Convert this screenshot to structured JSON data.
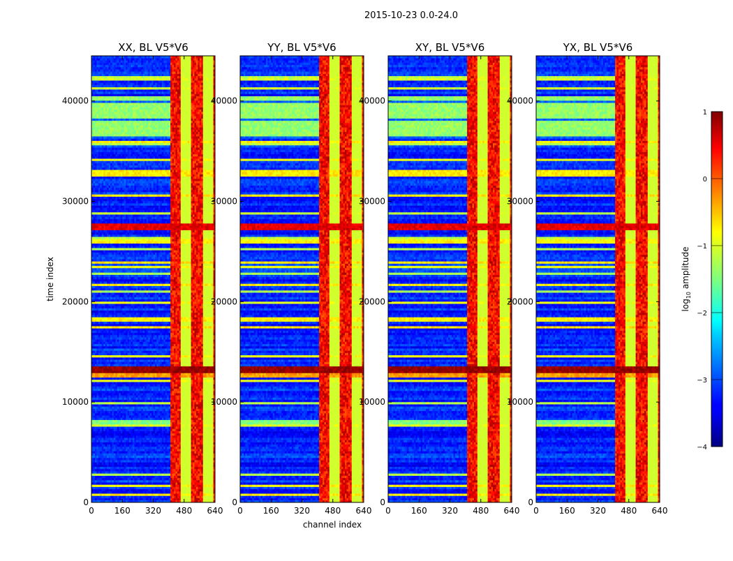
{
  "chart_data": {
    "type": "heatmap",
    "suptitle": "2015-10-23 0.0-24.0",
    "xlabel": "channel index",
    "ylabel": "time index",
    "xlim": [
      0,
      640
    ],
    "ylim": [
      0,
      44500
    ],
    "xticks": [
      0,
      160,
      320,
      480,
      640
    ],
    "yticks": [
      0,
      10000,
      20000,
      30000,
      40000
    ],
    "colormap": "jet",
    "colorbar": {
      "label_prefix": "log",
      "label_sub": "10",
      "label_suffix": " amplitude",
      "range": [
        -4,
        1
      ],
      "ticks": [
        1,
        0,
        -1,
        -2,
        -3,
        -4
      ],
      "tick_labels": [
        "1",
        "0",
        "−1",
        "−2",
        "−3",
        "−4"
      ]
    },
    "panels": [
      {
        "title": "XX, BL V5*V6",
        "pol": "XX",
        "yticklabels": [
          "0",
          "10000",
          "20000",
          "30000",
          "40000"
        ]
      },
      {
        "title": "YY, BL V5*V6",
        "pol": "YY",
        "yticklabels": [
          "0",
          "10000",
          "20000",
          "30000",
          "40000"
        ]
      },
      {
        "title": "XY, BL V5*V6",
        "pol": "XY",
        "yticklabels": [
          "0",
          "10000",
          "20000",
          "30000",
          "40000"
        ]
      },
      {
        "title": "YX, BL V5*V6",
        "pol": "YX",
        "yticklabels": [
          "0",
          "10000",
          "20000",
          "30000",
          "40000"
        ]
      }
    ],
    "rfi_region": {
      "channel_start": 405,
      "channel_end": 640,
      "peak_log_amplitude": 0.8
    },
    "quiet_region_log_amplitude": -3.2,
    "flagged_time_block": [
      36300,
      40500
    ],
    "bright_time_bands": [
      {
        "time": 13300,
        "log_amplitude": 0.9
      },
      {
        "time": 27500,
        "log_amplitude": 0.5
      },
      {
        "time": 12700,
        "log_amplitude": -0.4
      },
      {
        "time": 32800,
        "log_amplitude": -0.8
      },
      {
        "time": 8000,
        "log_amplitude": -1.5
      }
    ]
  }
}
